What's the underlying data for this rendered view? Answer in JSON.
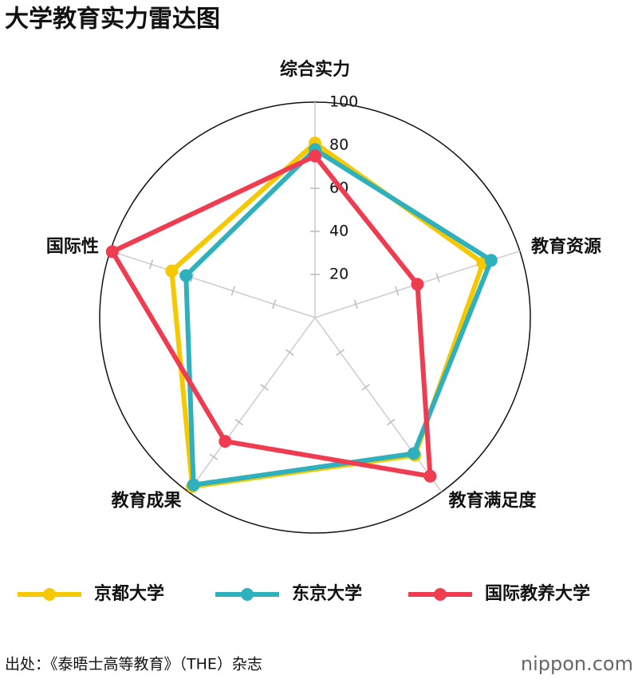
{
  "chart_data": {
    "type": "radar",
    "title": "大学教育实力雷达图",
    "categories": [
      "综合实力",
      "教育资源",
      "教育满足度",
      "教育成果",
      "国际性"
    ],
    "series": [
      {
        "name": "京都大学",
        "color": "#f5c800",
        "values": [
          81,
          82,
          79,
          97,
          70
        ]
      },
      {
        "name": "东京大学",
        "color": "#2fb0bd",
        "values": [
          78,
          86,
          78,
          96,
          63
        ]
      },
      {
        "name": "国际教养大学",
        "color": "#ef3c50",
        "values": [
          75,
          50,
          91,
          71,
          99
        ]
      }
    ],
    "rlim": [
      0,
      100
    ],
    "rticks": [
      20,
      40,
      60,
      80,
      100
    ],
    "grid": true,
    "source": "出处：《泰晤士高等教育》（THE）杂志",
    "logo": "nippon.com"
  }
}
